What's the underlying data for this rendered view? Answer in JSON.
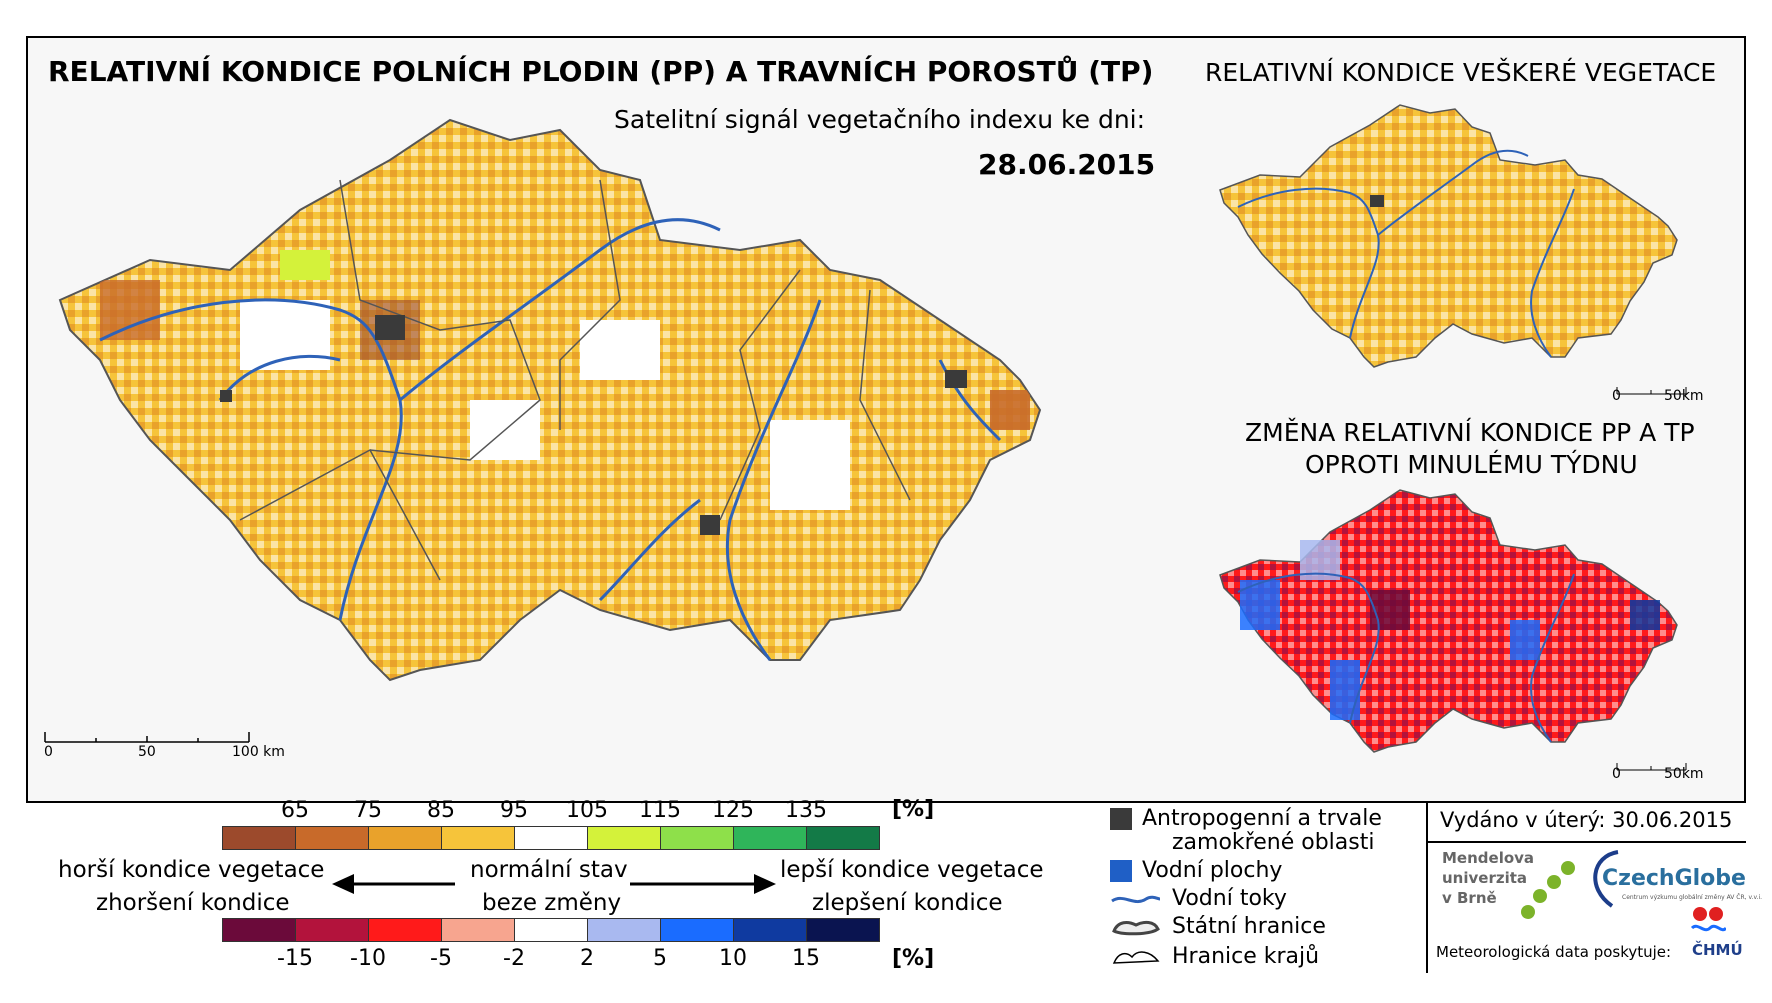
{
  "titles": {
    "main": "RELATIVNÍ KONDICE POLNÍCH PLODIN (PP) A TRAVNÍCH POROSTŮ (TP)",
    "subtitle": "Satelitní signál vegetačního indexu ke dni:",
    "date": "28.06.2015",
    "all_vegetation": "RELATIVNÍ KONDICE VEŠKERÉ VEGETACE",
    "change_line1": "ZMĚNA RELATIVNÍ KONDICE PP A TP",
    "change_line2": "OPROTI MINULÉMU TÝDNU"
  },
  "scale_main": {
    "s0": "0",
    "s50": "50",
    "s100": "100 km"
  },
  "scale_small_1": {
    "s0": "0",
    "s50": "50km"
  },
  "scale_small_2": {
    "s0": "0",
    "s50": "50km"
  },
  "legend_condition": {
    "unit": "[%]",
    "ticks": [
      "65",
      "75",
      "85",
      "95",
      "105",
      "115",
      "125",
      "135"
    ],
    "colors": [
      "#9c4a2c",
      "#c86a2a",
      "#e9a22b",
      "#f6c43a",
      "#ffffff",
      "#d4f23a",
      "#8ee04a",
      "#2fb55a",
      "#137a47"
    ]
  },
  "legend_change": {
    "unit": "[%]",
    "ticks": [
      "-15",
      "-10",
      "-5",
      "-2",
      "2",
      "5",
      "10",
      "15"
    ],
    "colors": [
      "#6b0a3a",
      "#b3133c",
      "#ff1a1a",
      "#f7a58f",
      "#ffffff",
      "#a9b9f0",
      "#1a6cff",
      "#0f3aa0",
      "#0a1450"
    ]
  },
  "legend_text": {
    "worse": "horší kondice vegetace",
    "worse2": "zhoršení kondice",
    "normal": "normální stav",
    "normal2": "beze změny",
    "better": "lepší kondice vegetace",
    "better2": "zlepšení kondice"
  },
  "symbols": {
    "anthropogenic": "Antropogenní a trvale",
    "anthropogenic2": "zamokřené oblasti",
    "water_bodies": "Vodní plochy",
    "rivers": "Vodní toky",
    "state_border": "Státní hranice",
    "region_border": "Hranice krajů"
  },
  "issued": "Vydáno v úterý: 30.06.2015",
  "logos": {
    "mendel1": "Mendelova",
    "mendel2": "univerzita",
    "mendel3": "v Brně",
    "czechglobe": "CzechGlobe",
    "czechglobe_sub": "Centrum výzkumu globální změny AV ČR, v.v.i.",
    "chmu": "ČHMÚ",
    "meteo": "Meteorologická data poskytuje:"
  },
  "colors": {
    "yellow": "#f6c43a",
    "orange": "#e9a22b",
    "river": "#2e62b8",
    "urban": "#3a3a3a"
  }
}
